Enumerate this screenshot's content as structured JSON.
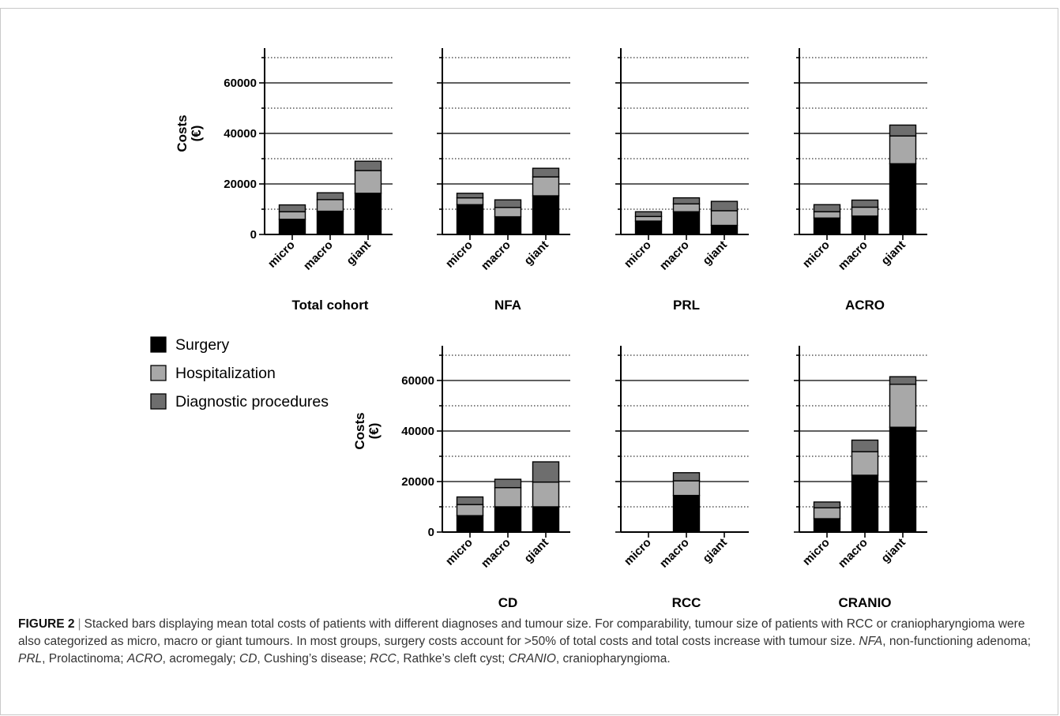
{
  "figure": {
    "label": "FIGURE 2",
    "caption_before": "Stacked bars displaying mean total costs of patients with different diagnoses and tumour size. For comparability, tumour size of patients with RCC or craniopharyngioma were also categorized as micro, macro or giant tumours. In most groups, surgery costs account for >50% of total costs and total costs increase with tumour size. ",
    "abbr": [
      {
        "term": "NFA",
        "def": ", non-functioning adenoma; "
      },
      {
        "term": "PRL",
        "def": ", Prolactinoma; "
      },
      {
        "term": "ACRO",
        "def": ", acromegaly; "
      },
      {
        "term": "CD",
        "def": ", Cushing’s disease; "
      },
      {
        "term": "RCC",
        "def": ", Rathke’s cleft cyst; "
      },
      {
        "term": "CRANIO",
        "def": ", craniopharyngioma."
      }
    ]
  },
  "legend": [
    {
      "label": "Surgery",
      "color": "#000000"
    },
    {
      "label": "Hospitalization",
      "color": "#a8a8a8"
    },
    {
      "label": "Diagnostic procedures",
      "color": "#6e6e6e"
    }
  ],
  "chart_data": [
    {
      "type": "bar",
      "stacked": true,
      "title": "Total cohort",
      "ylabel": "Costs\n(€)",
      "ylim": [
        0,
        70000
      ],
      "yticks": [
        0,
        20000,
        40000,
        60000
      ],
      "categories": [
        "micro",
        "macro",
        "giant"
      ],
      "series": [
        {
          "name": "Surgery",
          "values": [
            6000,
            9200,
            16300
          ]
        },
        {
          "name": "Hospitalization",
          "values": [
            3000,
            4600,
            9000
          ]
        },
        {
          "name": "Diagnostic procedures",
          "values": [
            2700,
            2700,
            3700
          ]
        }
      ]
    },
    {
      "type": "bar",
      "stacked": true,
      "title": "NFA",
      "ylim": [
        0,
        70000
      ],
      "categories": [
        "micro",
        "macro",
        "giant"
      ],
      "series": [
        {
          "name": "Surgery",
          "values": [
            11800,
            7000,
            15300
          ]
        },
        {
          "name": "Hospitalization",
          "values": [
            2700,
            3700,
            7500
          ]
        },
        {
          "name": "Diagnostic procedures",
          "values": [
            1800,
            3000,
            3400
          ]
        }
      ]
    },
    {
      "type": "bar",
      "stacked": true,
      "title": "PRL",
      "ylim": [
        0,
        70000
      ],
      "categories": [
        "micro",
        "macro",
        "giant"
      ],
      "series": [
        {
          "name": "Surgery",
          "values": [
            5300,
            9000,
            3600
          ]
        },
        {
          "name": "Hospitalization",
          "values": [
            1800,
            3100,
            5800
          ]
        },
        {
          "name": "Diagnostic procedures",
          "values": [
            1900,
            2400,
            3700
          ]
        }
      ]
    },
    {
      "type": "bar",
      "stacked": true,
      "title": "ACRO",
      "ylim": [
        0,
        70000
      ],
      "categories": [
        "micro",
        "macro",
        "giant"
      ],
      "series": [
        {
          "name": "Surgery",
          "values": [
            6500,
            7300,
            28000
          ]
        },
        {
          "name": "Hospitalization",
          "values": [
            2500,
            3500,
            11000
          ]
        },
        {
          "name": "Diagnostic procedures",
          "values": [
            2800,
            2800,
            4300
          ]
        }
      ]
    },
    {
      "type": "bar",
      "stacked": true,
      "title": "CD",
      "ylabel": "Costs\n(€)",
      "ylim": [
        0,
        70000
      ],
      "yticks": [
        0,
        20000,
        40000,
        60000
      ],
      "categories": [
        "micro",
        "macro",
        "giant"
      ],
      "series": [
        {
          "name": "Surgery",
          "values": [
            6500,
            10000,
            10000
          ]
        },
        {
          "name": "Hospitalization",
          "values": [
            4400,
            7600,
            9800
          ]
        },
        {
          "name": "Diagnostic procedures",
          "values": [
            3000,
            3300,
            8000
          ]
        }
      ]
    },
    {
      "type": "bar",
      "stacked": true,
      "title": "RCC",
      "ylim": [
        0,
        70000
      ],
      "categories": [
        "micro",
        "macro",
        "giant"
      ],
      "series": [
        {
          "name": "Surgery",
          "values": [
            0,
            14500,
            0
          ]
        },
        {
          "name": "Hospitalization",
          "values": [
            0,
            5800,
            0
          ]
        },
        {
          "name": "Diagnostic procedures",
          "values": [
            0,
            3200,
            0
          ]
        }
      ]
    },
    {
      "type": "bar",
      "stacked": true,
      "title": "CRANIO",
      "ylim": [
        0,
        70000
      ],
      "categories": [
        "micro",
        "macro",
        "giant"
      ],
      "series": [
        {
          "name": "Surgery",
          "values": [
            5300,
            22500,
            41500
          ]
        },
        {
          "name": "Hospitalization",
          "values": [
            4300,
            9300,
            17000
          ]
        },
        {
          "name": "Diagnostic procedures",
          "values": [
            2300,
            4600,
            3000
          ]
        }
      ]
    }
  ]
}
